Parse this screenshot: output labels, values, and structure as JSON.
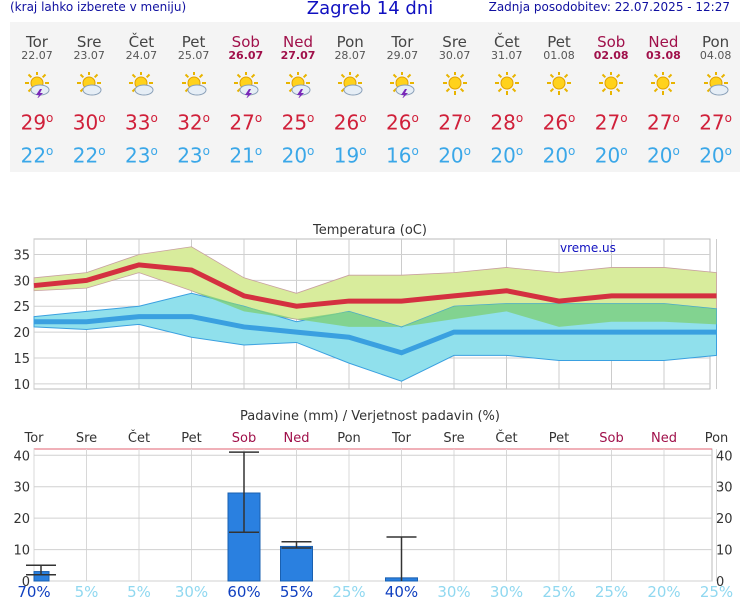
{
  "header": {
    "menu_hint": "(kraj lahko izberete v meniju)",
    "title": "Zagreb 14 dni",
    "updated": "Zadnja posodobitev: 22.07.2025 - 12:27"
  },
  "days": [
    {
      "name": "Tor",
      "date": "22.07",
      "icon": "thunderstorm-icon",
      "max": "29",
      "min": "22",
      "weekend": false,
      "precip_prob": "70%"
    },
    {
      "name": "Sre",
      "date": "23.07",
      "icon": "partly-cloudy-icon",
      "max": "30",
      "min": "22",
      "weekend": false,
      "precip_prob": "5%"
    },
    {
      "name": "Čet",
      "date": "24.07",
      "icon": "partly-cloudy-icon",
      "max": "33",
      "min": "23",
      "weekend": false,
      "precip_prob": "5%"
    },
    {
      "name": "Pet",
      "date": "25.07",
      "icon": "partly-cloudy-icon",
      "max": "32",
      "min": "23",
      "weekend": false,
      "precip_prob": "30%"
    },
    {
      "name": "Sob",
      "date": "26.07",
      "icon": "thunderstorm-icon",
      "max": "27",
      "min": "21",
      "weekend": true,
      "precip_prob": "60%"
    },
    {
      "name": "Ned",
      "date": "27.07",
      "icon": "thunderstorm-icon",
      "max": "25",
      "min": "20",
      "weekend": true,
      "precip_prob": "55%"
    },
    {
      "name": "Pon",
      "date": "28.07",
      "icon": "partly-cloudy-icon",
      "max": "26",
      "min": "19",
      "weekend": false,
      "precip_prob": "25%"
    },
    {
      "name": "Tor",
      "date": "29.07",
      "icon": "thunderstorm-icon",
      "max": "26",
      "min": "16",
      "weekend": false,
      "precip_prob": "40%"
    },
    {
      "name": "Sre",
      "date": "30.07",
      "icon": "sunny-icon",
      "max": "27",
      "min": "20",
      "weekend": false,
      "precip_prob": "30%"
    },
    {
      "name": "Čet",
      "date": "31.07",
      "icon": "sunny-icon",
      "max": "28",
      "min": "20",
      "weekend": false,
      "precip_prob": "30%"
    },
    {
      "name": "Pet",
      "date": "01.08",
      "icon": "sunny-icon",
      "max": "26",
      "min": "20",
      "weekend": false,
      "precip_prob": "25%"
    },
    {
      "name": "Sob",
      "date": "02.08",
      "icon": "sunny-icon",
      "max": "27",
      "min": "20",
      "weekend": true,
      "precip_prob": "25%"
    },
    {
      "name": "Ned",
      "date": "03.08",
      "icon": "sunny-icon",
      "max": "27",
      "min": "20",
      "weekend": true,
      "precip_prob": "20%"
    },
    {
      "name": "Pon",
      "date": "04.08",
      "icon": "partly-cloudy-icon",
      "max": "27",
      "min": "20",
      "weekend": false,
      "precip_prob": "25%"
    }
  ],
  "degree_sign": "o",
  "colors": {
    "max_line": "#d43040",
    "min_line": "#3aa0e0",
    "max_band": "#d8ec9c",
    "min_band": "#90e0ec",
    "overlap_band": "#80d080",
    "bar": "#2a80e0",
    "weekend": "#a0104a",
    "prob_high": "#1040c0",
    "prob_low": "#90d8f0"
  },
  "chart_data": [
    {
      "type": "line",
      "title": "Temperatura (oC)",
      "watermark": "vreme.us",
      "ylim": [
        9,
        38
      ],
      "yticks": [
        10,
        15,
        20,
        25,
        30,
        35
      ],
      "series": [
        {
          "key": "max",
          "values": [
            29,
            30,
            33,
            32,
            27,
            25,
            26,
            26,
            27,
            28,
            26,
            27,
            27,
            27
          ]
        },
        {
          "key": "max_hi",
          "values": [
            30.5,
            31.5,
            35,
            36.5,
            30.5,
            27.5,
            31,
            31,
            31.5,
            32.5,
            31.5,
            32.5,
            32.5,
            31.5
          ]
        },
        {
          "key": "max_lo",
          "values": [
            28,
            28.5,
            31.5,
            28,
            24,
            22.5,
            21,
            21,
            22.5,
            24,
            21,
            22,
            22,
            21.5
          ]
        },
        {
          "key": "min",
          "values": [
            22,
            22,
            23,
            23,
            21,
            20,
            19,
            16,
            20,
            20,
            20,
            20,
            20,
            20
          ]
        },
        {
          "key": "min_hi",
          "values": [
            23,
            24,
            25,
            27.5,
            25,
            22,
            24,
            21,
            25,
            25.5,
            25.5,
            25.5,
            25.5,
            24.5
          ]
        },
        {
          "key": "min_lo",
          "values": [
            21,
            20.5,
            21.5,
            19,
            17.5,
            18,
            14,
            10.5,
            15.5,
            15.5,
            14.5,
            14.5,
            14.5,
            15.5
          ]
        }
      ]
    },
    {
      "type": "bar",
      "title": "Padavine (mm) / Verjetnost padavin (%)",
      "ylim": [
        0,
        42
      ],
      "yticks": [
        0,
        10,
        20,
        30,
        40
      ],
      "values": [
        3,
        0,
        0,
        0,
        28,
        11,
        0,
        1,
        0,
        0,
        0,
        0,
        0,
        0
      ],
      "error_high": [
        5,
        0,
        0,
        0,
        41,
        12.5,
        0,
        14,
        0,
        0,
        0,
        0,
        0,
        0
      ],
      "error_low": [
        2,
        0,
        0,
        0,
        15.5,
        10.5,
        0,
        0,
        0,
        0,
        0,
        0,
        0,
        0
      ]
    }
  ]
}
